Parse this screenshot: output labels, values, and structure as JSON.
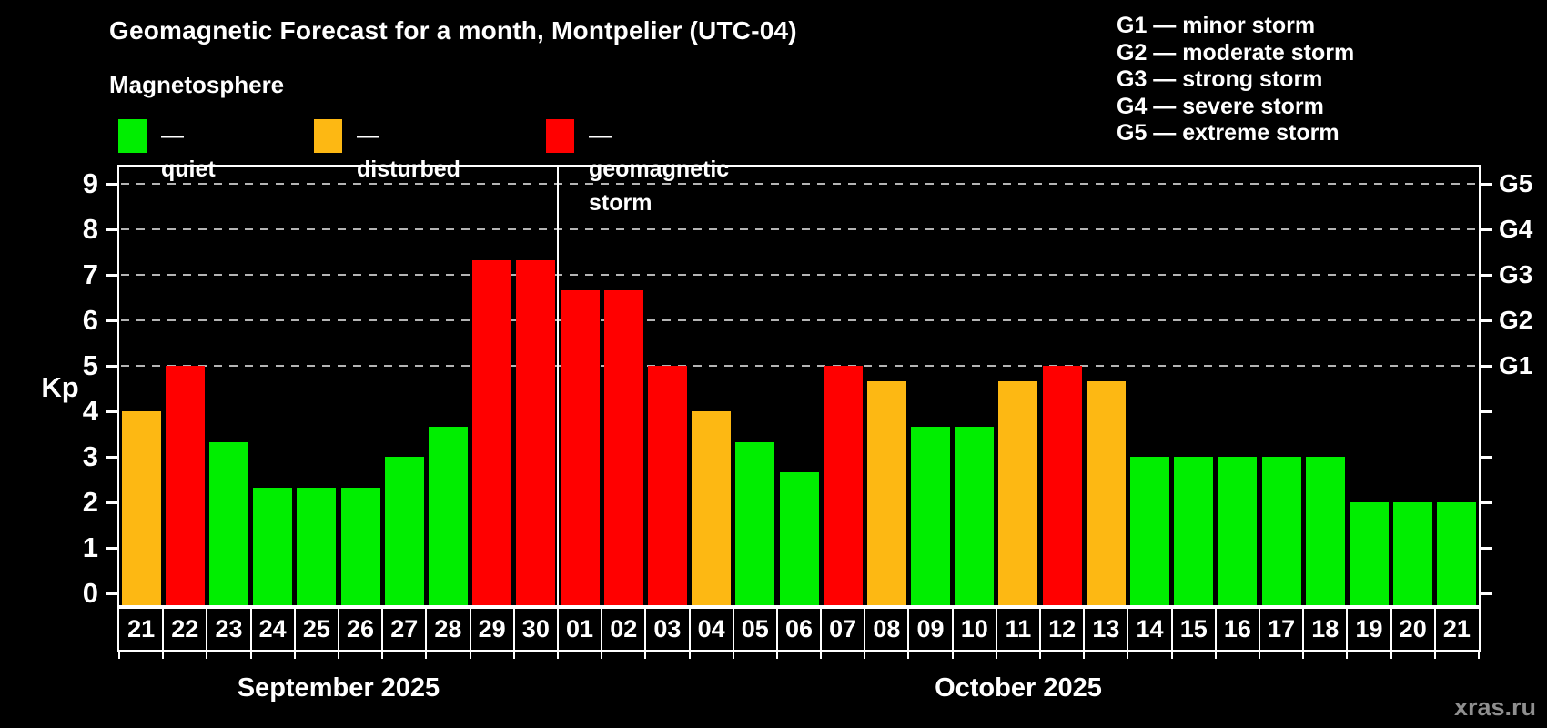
{
  "title": "Geomagnetic Forecast for a month, Montpelier (UTC-04)",
  "subtitle": "Magnetosphere",
  "legend": [
    {
      "condition": "quiet",
      "label": "— quiet"
    },
    {
      "condition": "disturbed",
      "label": "— disturbed"
    },
    {
      "condition": "storm",
      "label": "— geomagnetic storm"
    }
  ],
  "condition_colors": {
    "quiet": "#00ee00",
    "disturbed": "#fdb813",
    "storm": "#ff0000"
  },
  "g_legend": [
    "G1 — minor storm",
    "G2 — moderate storm",
    "G3 — strong storm",
    "G4 — severe storm",
    "G5 — extreme storm"
  ],
  "axes": {
    "y_label": "Kp",
    "y_ticks": [
      0,
      1,
      2,
      3,
      4,
      5,
      6,
      7,
      8,
      9
    ],
    "right_labels": [
      {
        "value": 5,
        "label": "G1"
      },
      {
        "value": 6,
        "label": "G2"
      },
      {
        "value": 7,
        "label": "G3"
      },
      {
        "value": 8,
        "label": "G4"
      },
      {
        "value": 9,
        "label": "G5"
      }
    ]
  },
  "months": [
    {
      "label": "September 2025",
      "days": 10
    },
    {
      "label": "October 2025",
      "days": 21
    }
  ],
  "watermark": "xras.ru",
  "chart_data": {
    "type": "bar",
    "title": "Geomagnetic Forecast for a month, Montpelier (UTC-04)",
    "ylabel": "Kp",
    "ylim": [
      0,
      9.4
    ],
    "grid_values": [
      5,
      6,
      7,
      8,
      9
    ],
    "grid_on": true,
    "month_separator_after_index": 9,
    "x_categories": [
      "21",
      "22",
      "23",
      "24",
      "25",
      "26",
      "27",
      "28",
      "29",
      "30",
      "01",
      "02",
      "03",
      "04",
      "05",
      "06",
      "07",
      "08",
      "09",
      "10",
      "11",
      "12",
      "13",
      "14",
      "15",
      "16",
      "17",
      "18",
      "19",
      "20",
      "21"
    ],
    "series": [
      {
        "name": "Kp forecast",
        "values": [
          4,
          5,
          3.33,
          2.33,
          2.33,
          2.33,
          3,
          3.67,
          7.33,
          7.33,
          6.67,
          6.67,
          5,
          4,
          3.33,
          2.67,
          5,
          4.67,
          3.67,
          3.67,
          4.67,
          5,
          4.67,
          3,
          3,
          3,
          3,
          3,
          2,
          2,
          2
        ]
      }
    ],
    "conditions": [
      "disturbed",
      "storm",
      "quiet",
      "quiet",
      "quiet",
      "quiet",
      "quiet",
      "quiet",
      "storm",
      "storm",
      "storm",
      "storm",
      "storm",
      "disturbed",
      "quiet",
      "quiet",
      "storm",
      "disturbed",
      "quiet",
      "quiet",
      "disturbed",
      "storm",
      "disturbed",
      "quiet",
      "quiet",
      "quiet",
      "quiet",
      "quiet",
      "quiet",
      "quiet",
      "quiet"
    ]
  }
}
